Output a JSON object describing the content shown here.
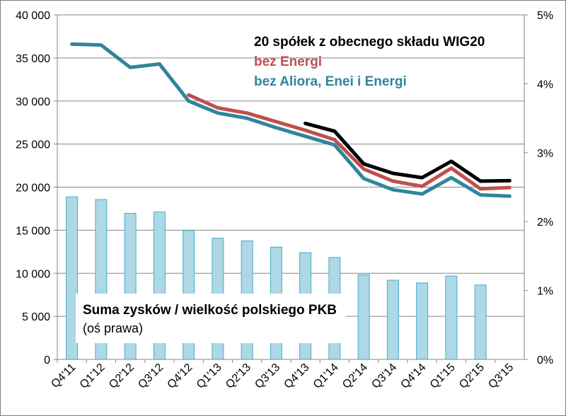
{
  "chart_data": {
    "type": "bar+line",
    "categories": [
      "Q4'11",
      "Q1'12",
      "Q2'12",
      "Q3'12",
      "Q4'12",
      "Q1'13",
      "Q2'13",
      "Q3'13",
      "Q4'13",
      "Q1'14",
      "Q2'14",
      "Q3'14",
      "Q4'14",
      "Q1'15",
      "Q2'15",
      "Q3'15"
    ],
    "left_axis": {
      "min": 0,
      "max": 40000,
      "step": 5000,
      "ticks": [
        "0",
        "5 000",
        "10 000",
        "15 000",
        "20 000",
        "25 000",
        "30 000",
        "35 000",
        "40 000"
      ]
    },
    "right_axis": {
      "min": 0,
      "max": 5,
      "step": 1,
      "ticks": [
        "0%",
        "1%",
        "2%",
        "3%",
        "4%",
        "5%"
      ]
    },
    "grid": true,
    "bars": {
      "name": "Suma zysków / wielkość polskiego PKB",
      "axis": "right",
      "unit": "%",
      "values": [
        2.36,
        2.32,
        2.12,
        2.14,
        1.87,
        1.76,
        1.72,
        1.63,
        1.55,
        1.48,
        1.23,
        1.15,
        1.11,
        1.21,
        1.08,
        null
      ],
      "color": "#add8e6",
      "border": "#4bacc6"
    },
    "series": [
      {
        "name": "20 spółek z obecnego składu WIG20",
        "axis": "left",
        "color": "#000000",
        "values": [
          null,
          null,
          null,
          null,
          null,
          null,
          null,
          null,
          27400,
          26500,
          22700,
          21600,
          21100,
          23000,
          20700,
          20750
        ]
      },
      {
        "name": "bez Energi",
        "axis": "left",
        "color": "#c0504d",
        "values": [
          null,
          null,
          null,
          null,
          30700,
          29200,
          28600,
          27600,
          26600,
          25500,
          22100,
          20700,
          20100,
          22200,
          19800,
          19950
        ]
      },
      {
        "name": "bez Aliora, Enei i Energi",
        "axis": "left",
        "color": "#31849b",
        "values": [
          36600,
          36500,
          33900,
          34300,
          30000,
          28600,
          28000,
          26900,
          25900,
          24900,
          21000,
          19700,
          19200,
          21100,
          19100,
          18950
        ]
      }
    ],
    "annotation": {
      "title": "Suma zysków / wielkość polskiego PKB",
      "subtitle": "(oś prawa)"
    }
  }
}
